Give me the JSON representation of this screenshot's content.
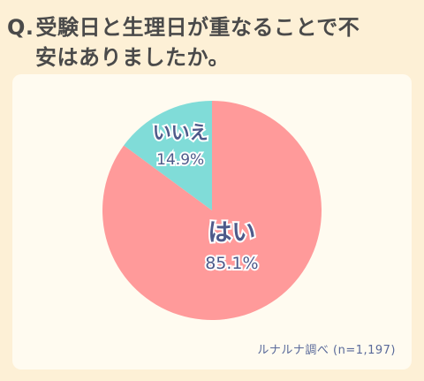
{
  "title": {
    "prefix": "Q.",
    "line1": "受験日と生理日が重なることで不",
    "line2": "安はありましたか。"
  },
  "chart_data": {
    "type": "pie",
    "categories": [
      "はい",
      "いいえ"
    ],
    "values": [
      85.1,
      14.9
    ],
    "value_labels": [
      "85.1%",
      "14.9%"
    ],
    "colors": [
      "#ff9a9a",
      "#80dcd8"
    ],
    "label_color": "#4e5a8a",
    "start_angle_deg": 0,
    "direction": "clockwise"
  },
  "source": "ルナルナ調べ (n=1,197)"
}
